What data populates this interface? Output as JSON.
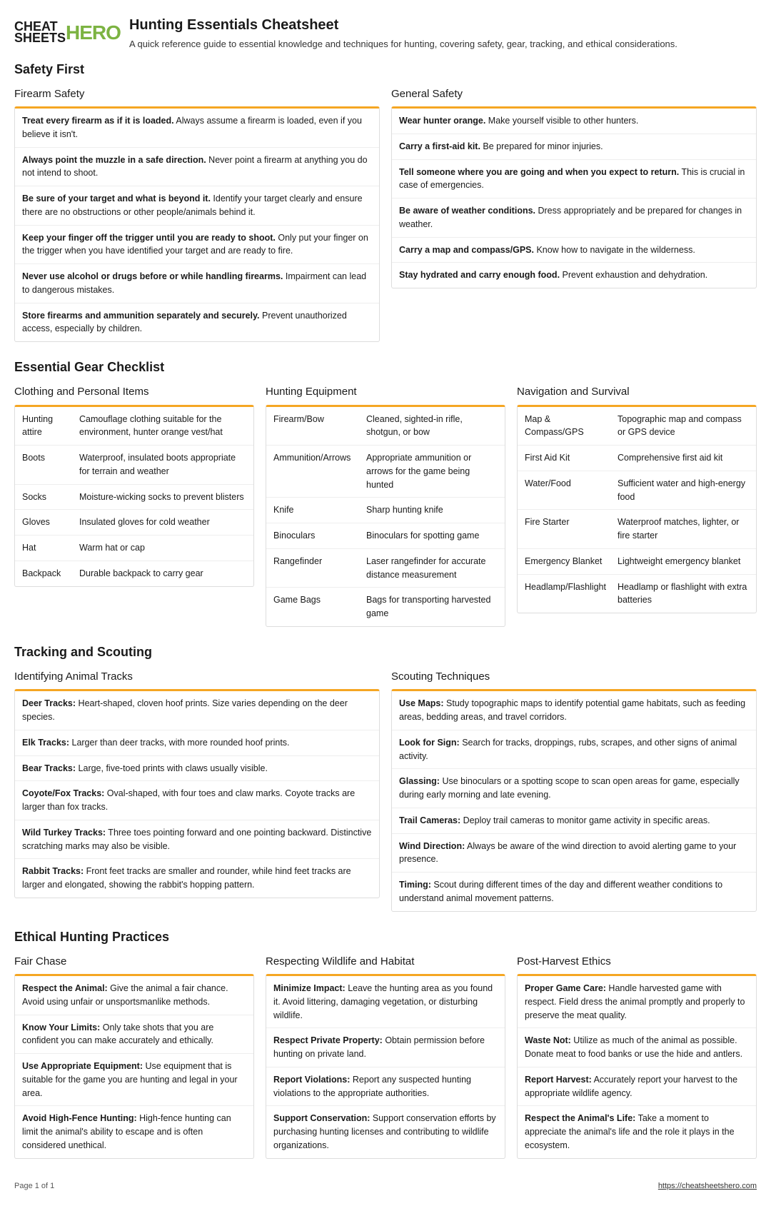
{
  "logo": {
    "left": "CHEAT\nSHEETS",
    "right": "HERO"
  },
  "title": "Hunting Essentials Cheatsheet",
  "subtitle": "A quick reference guide to essential knowledge and techniques for hunting, covering safety, gear, tracking, and ethical considerations.",
  "sections": {
    "safety": {
      "heading": "Safety First",
      "firearm": {
        "title": "Firearm Safety",
        "items": [
          {
            "b": "Treat every firearm as if it is loaded.",
            "t": " Always assume a firearm is loaded, even if you believe it isn't."
          },
          {
            "b": "Always point the muzzle in a safe direction.",
            "t": " Never point a firearm at anything you do not intend to shoot."
          },
          {
            "b": "Be sure of your target and what is beyond it.",
            "t": " Identify your target clearly and ensure there are no obstructions or other people/animals behind it."
          },
          {
            "b": "Keep your finger off the trigger until you are ready to shoot.",
            "t": " Only put your finger on the trigger when you have identified your target and are ready to fire."
          },
          {
            "b": "Never use alcohol or drugs before or while handling firearms.",
            "t": " Impairment can lead to dangerous mistakes."
          },
          {
            "b": "Store firearms and ammunition separately and securely.",
            "t": " Prevent unauthorized access, especially by children."
          }
        ]
      },
      "general": {
        "title": "General Safety",
        "items": [
          {
            "b": "Wear hunter orange.",
            "t": " Make yourself visible to other hunters."
          },
          {
            "b": "Carry a first-aid kit.",
            "t": " Be prepared for minor injuries."
          },
          {
            "b": "Tell someone where you are going and when you expect to return.",
            "t": " This is crucial in case of emergencies."
          },
          {
            "b": "Be aware of weather conditions.",
            "t": " Dress appropriately and be prepared for changes in weather."
          },
          {
            "b": "Carry a map and compass/GPS.",
            "t": " Know how to navigate in the wilderness."
          },
          {
            "b": "Stay hydrated and carry enough food.",
            "t": " Prevent exhaustion and dehydration."
          }
        ]
      }
    },
    "gear": {
      "heading": "Essential Gear Checklist",
      "clothing": {
        "title": "Clothing and Personal Items",
        "keyWidth": "70px",
        "rows": [
          {
            "k": "Hunting attire",
            "v": "Camouflage clothing suitable for the environment, hunter orange vest/hat"
          },
          {
            "k": "Boots",
            "v": "Waterproof, insulated boots appropriate for terrain and weather"
          },
          {
            "k": "Socks",
            "v": "Moisture-wicking socks to prevent blisters"
          },
          {
            "k": "Gloves",
            "v": "Insulated gloves for cold weather"
          },
          {
            "k": "Hat",
            "v": "Warm hat or cap"
          },
          {
            "k": "Backpack",
            "v": "Durable backpack to carry gear"
          }
        ]
      },
      "equipment": {
        "title": "Hunting Equipment",
        "keyWidth": "120px",
        "rows": [
          {
            "k": "Firearm/Bow",
            "v": "Cleaned, sighted-in rifle, shotgun, or bow"
          },
          {
            "k": "Ammunition/Arrows",
            "v": "Appropriate ammunition or arrows for the game being hunted"
          },
          {
            "k": "Knife",
            "v": "Sharp hunting knife"
          },
          {
            "k": "Binoculars",
            "v": "Binoculars for spotting game"
          },
          {
            "k": "Rangefinder",
            "v": "Laser rangefinder for accurate distance measurement"
          },
          {
            "k": "Game Bags",
            "v": "Bags for transporting harvested game"
          }
        ]
      },
      "nav": {
        "title": "Navigation and Survival",
        "keyWidth": "120px",
        "rows": [
          {
            "k": "Map & Compass/GPS",
            "v": "Topographic map and compass or GPS device"
          },
          {
            "k": "First Aid Kit",
            "v": "Comprehensive first aid kit"
          },
          {
            "k": "Water/Food",
            "v": "Sufficient water and high-energy food"
          },
          {
            "k": "Fire Starter",
            "v": "Waterproof matches, lighter, or fire starter"
          },
          {
            "k": "Emergency Blanket",
            "v": "Lightweight emergency blanket"
          },
          {
            "k": "Headlamp/Flashlight",
            "v": "Headlamp or flashlight with extra batteries"
          }
        ]
      }
    },
    "tracking": {
      "heading": "Tracking and Scouting",
      "tracks": {
        "title": "Identifying Animal Tracks",
        "items": [
          {
            "b": "Deer Tracks:",
            "t": " Heart-shaped, cloven hoof prints. Size varies depending on the deer species."
          },
          {
            "b": "Elk Tracks:",
            "t": " Larger than deer tracks, with more rounded hoof prints."
          },
          {
            "b": "Bear Tracks:",
            "t": " Large, five-toed prints with claws usually visible."
          },
          {
            "b": "Coyote/Fox Tracks:",
            "t": " Oval-shaped, with four toes and claw marks. Coyote tracks are larger than fox tracks."
          },
          {
            "b": "Wild Turkey Tracks:",
            "t": " Three toes pointing forward and one pointing backward. Distinctive scratching marks may also be visible."
          },
          {
            "b": "Rabbit Tracks:",
            "t": " Front feet tracks are smaller and rounder, while hind feet tracks are larger and elongated, showing the rabbit's hopping pattern."
          }
        ]
      },
      "scouting": {
        "title": "Scouting Techniques",
        "items": [
          {
            "b": "Use Maps:",
            "t": " Study topographic maps to identify potential game habitats, such as feeding areas, bedding areas, and travel corridors."
          },
          {
            "b": "Look for Sign:",
            "t": " Search for tracks, droppings, rubs, scrapes, and other signs of animal activity."
          },
          {
            "b": "Glassing:",
            "t": " Use binoculars or a spotting scope to scan open areas for game, especially during early morning and late evening."
          },
          {
            "b": "Trail Cameras:",
            "t": " Deploy trail cameras to monitor game activity in specific areas."
          },
          {
            "b": "Wind Direction:",
            "t": " Always be aware of the wind direction to avoid alerting game to your presence."
          },
          {
            "b": "Timing:",
            "t": " Scout during different times of the day and different weather conditions to understand animal movement patterns."
          }
        ]
      }
    },
    "ethics": {
      "heading": "Ethical Hunting Practices",
      "fair": {
        "title": "Fair Chase",
        "items": [
          {
            "b": "Respect the Animal:",
            "t": " Give the animal a fair chance. Avoid using unfair or unsportsmanlike methods."
          },
          {
            "b": "Know Your Limits:",
            "t": " Only take shots that you are confident you can make accurately and ethically."
          },
          {
            "b": "Use Appropriate Equipment:",
            "t": " Use equipment that is suitable for the game you are hunting and legal in your area."
          },
          {
            "b": "Avoid High-Fence Hunting:",
            "t": " High-fence hunting can limit the animal's ability to escape and is often considered unethical."
          }
        ]
      },
      "respect": {
        "title": "Respecting Wildlife and Habitat",
        "items": [
          {
            "b": "Minimize Impact:",
            "t": " Leave the hunting area as you found it. Avoid littering, damaging vegetation, or disturbing wildlife."
          },
          {
            "b": "Respect Private Property:",
            "t": " Obtain permission before hunting on private land."
          },
          {
            "b": "Report Violations:",
            "t": " Report any suspected hunting violations to the appropriate authorities."
          },
          {
            "b": "Support Conservation:",
            "t": " Support conservation efforts by purchasing hunting licenses and contributing to wildlife organizations."
          }
        ]
      },
      "post": {
        "title": "Post-Harvest Ethics",
        "items": [
          {
            "b": "Proper Game Care:",
            "t": " Handle harvested game with respect. Field dress the animal promptly and properly to preserve the meat quality."
          },
          {
            "b": "Waste Not:",
            "t": " Utilize as much of the animal as possible. Donate meat to food banks or use the hide and antlers."
          },
          {
            "b": "Report Harvest:",
            "t": " Accurately report your harvest to the appropriate wildlife agency."
          },
          {
            "b": "Respect the Animal's Life:",
            "t": " Take a moment to appreciate the animal's life and the role it plays in the ecosystem."
          }
        ]
      }
    }
  },
  "footer": {
    "page": "Page 1 of 1",
    "url": "https://cheatsheetshero.com"
  },
  "colors": {
    "accent": "#f5a623",
    "logo_green": "#7cb342",
    "border": "#ddd"
  }
}
